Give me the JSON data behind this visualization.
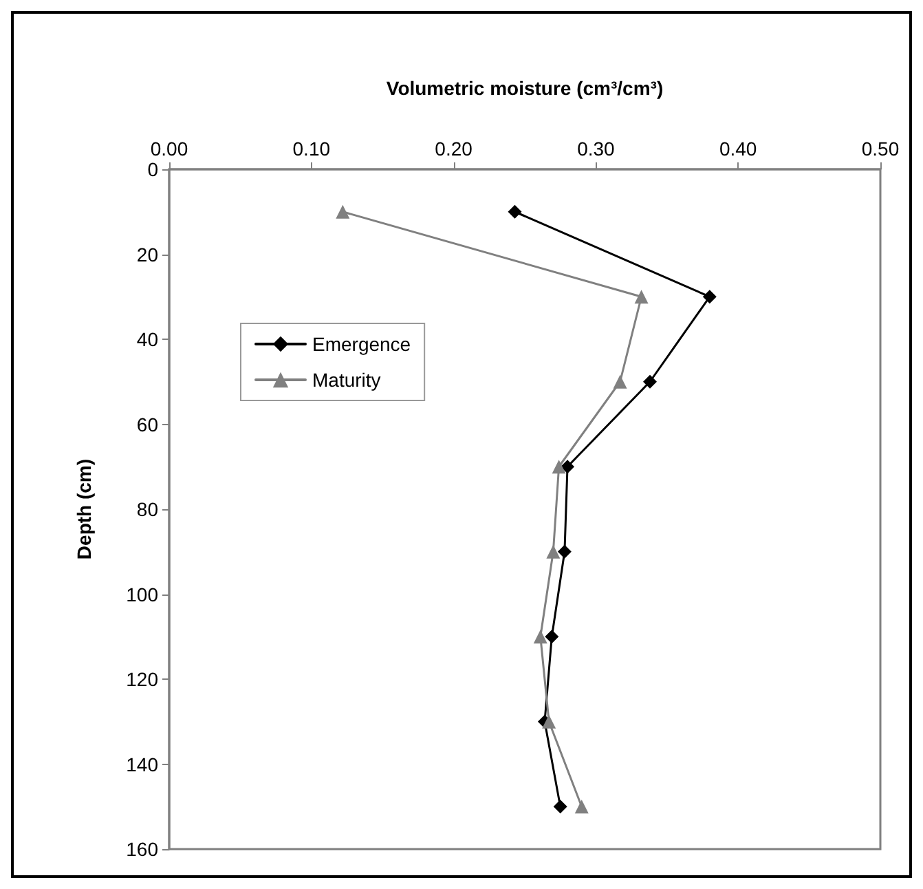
{
  "chart_data": {
    "type": "line",
    "xlabel": "Volumetric moisture (cm³/cm³)",
    "ylabel": "Depth (cm)",
    "xlim": [
      0,
      0.5
    ],
    "xticks": [
      {
        "value": 0,
        "label": "0.00"
      },
      {
        "value": 0.1,
        "label": "0.10"
      },
      {
        "value": 0.2,
        "label": "0.20"
      },
      {
        "value": 0.3,
        "label": "0.30"
      },
      {
        "value": 0.4,
        "label": "0.40"
      },
      {
        "value": 0.5,
        "label": "0.50"
      }
    ],
    "ylim": [
      160,
      0
    ],
    "yticks": [
      0,
      20,
      40,
      60,
      80,
      100,
      120,
      140,
      160
    ],
    "grid": false,
    "legend": "top left",
    "line_style": "solid",
    "series": [
      {
        "name": "Emergence",
        "color": "#000000",
        "marker": "diamond",
        "x": [
          0.243,
          0.38,
          0.338,
          0.28,
          0.278,
          0.269,
          0.264,
          0.275
        ],
        "values": [
          10,
          30,
          50,
          70,
          90,
          110,
          130,
          150
        ]
      },
      {
        "name": "Maturity",
        "color": "#808080",
        "marker": "triangle",
        "x": [
          0.122,
          0.332,
          0.317,
          0.274,
          0.27,
          0.261,
          0.267,
          0.29
        ],
        "values": [
          10,
          30,
          50,
          70,
          90,
          110,
          130,
          150
        ]
      }
    ]
  }
}
